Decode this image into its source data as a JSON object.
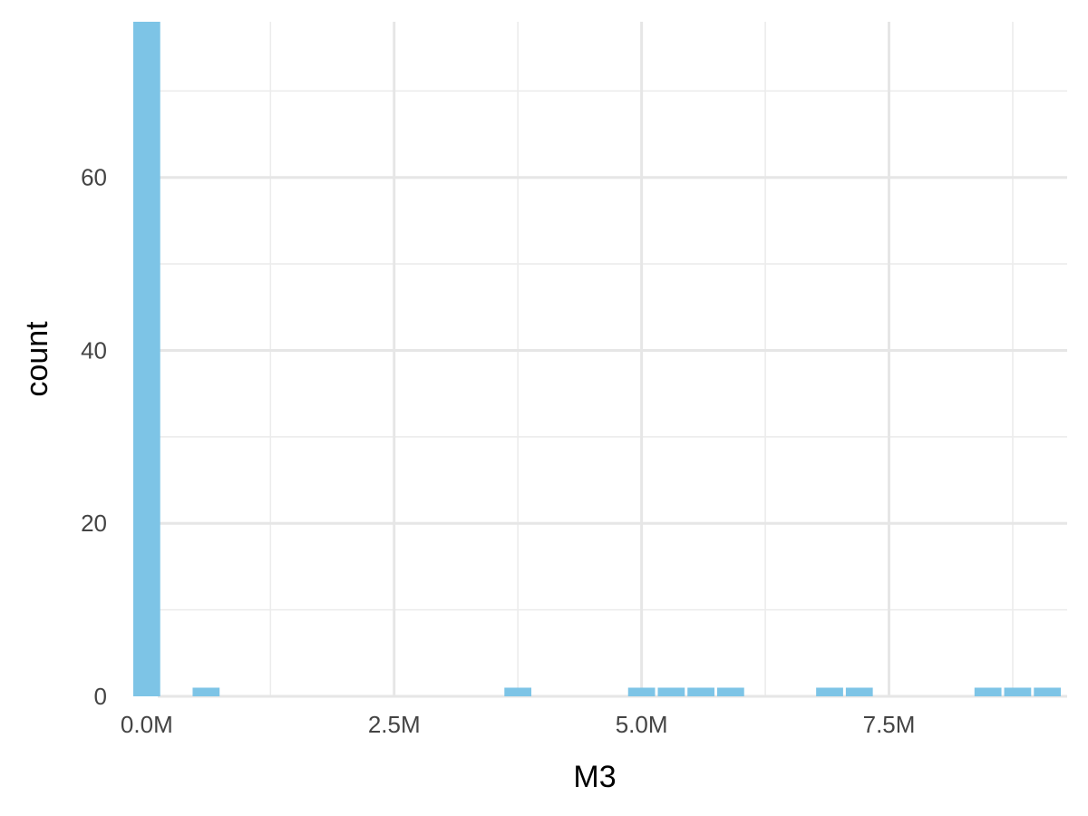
{
  "chart_data": {
    "type": "bar",
    "title": "",
    "xlabel": "M3",
    "ylabel": "count",
    "xlim": [
      -200000,
      9300000
    ],
    "ylim": [
      0,
      78
    ],
    "bin_width": 300000,
    "bar_color": "#7DC4E6",
    "grid": true,
    "x_ticks": [
      {
        "value": 0,
        "label": "0.0M"
      },
      {
        "value": 2500000,
        "label": "2.5M"
      },
      {
        "value": 5000000,
        "label": "5.0M"
      },
      {
        "value": 7500000,
        "label": "7.5M"
      }
    ],
    "x_minor": [
      1250000,
      3750000,
      6250000,
      8750000
    ],
    "y_ticks": [
      {
        "value": 0,
        "label": "0"
      },
      {
        "value": 20,
        "label": "20"
      },
      {
        "value": 40,
        "label": "40"
      },
      {
        "value": 60,
        "label": "60"
      }
    ],
    "y_minor": [
      10,
      30,
      50,
      70
    ],
    "bins": [
      {
        "x": 0,
        "count": 78
      },
      {
        "x": 600000,
        "count": 1
      },
      {
        "x": 3750000,
        "count": 1
      },
      {
        "x": 5000000,
        "count": 1
      },
      {
        "x": 5300000,
        "count": 1
      },
      {
        "x": 5600000,
        "count": 1
      },
      {
        "x": 5900000,
        "count": 1
      },
      {
        "x": 6900000,
        "count": 1
      },
      {
        "x": 7200000,
        "count": 1
      },
      {
        "x": 8500000,
        "count": 1
      },
      {
        "x": 8800000,
        "count": 1
      },
      {
        "x": 9100000,
        "count": 1
      }
    ]
  }
}
